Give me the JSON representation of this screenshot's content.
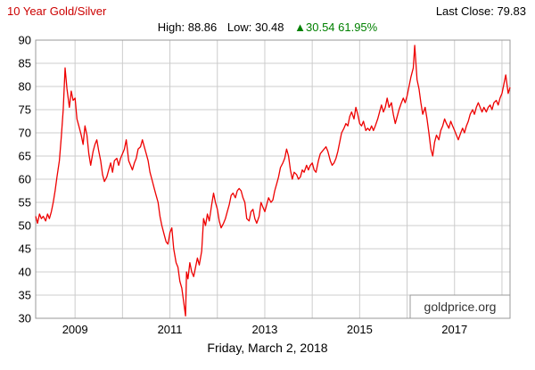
{
  "header": {
    "title": "10 Year Gold/Silver",
    "last_close": "Last Close: 79.83"
  },
  "stats": {
    "high": "High: 88.86",
    "low": "Low: 30.48",
    "change": "▲30.54 61.95%"
  },
  "footer": {
    "date": "Friday, March 2, 2018"
  },
  "watermark": "goldprice.org",
  "colors": {
    "title": "#cc0000",
    "line": "#ee0000",
    "change_positive": "#008000",
    "grid": "#cccccc",
    "border": "#999999"
  },
  "chart_data": {
    "type": "line",
    "title": "10 Year Gold/Silver",
    "last_close": 79.83,
    "high": 88.86,
    "low": 30.48,
    "change": 30.54,
    "change_pct": "61.95%",
    "xlim": [
      2008.17,
      2018.17
    ],
    "ylim": [
      30,
      90
    ],
    "ytick_step": 5,
    "xticks": [
      2009,
      2011,
      2013,
      2015,
      2017
    ],
    "x_gridlines": [
      2009,
      2010,
      2011,
      2012,
      2013,
      2014,
      2015,
      2016,
      2017,
      2018
    ],
    "grid": true,
    "legend": "none",
    "line_color": "#ee0000",
    "grid_color": "#cccccc",
    "border_color": "#999999",
    "points": [
      [
        2008.17,
        52.0
      ],
      [
        2008.21,
        50.5
      ],
      [
        2008.25,
        52.5
      ],
      [
        2008.29,
        51.5
      ],
      [
        2008.33,
        52.0
      ],
      [
        2008.38,
        51.0
      ],
      [
        2008.42,
        52.5
      ],
      [
        2008.46,
        51.5
      ],
      [
        2008.5,
        53.0
      ],
      [
        2008.54,
        55.0
      ],
      [
        2008.58,
        57.5
      ],
      [
        2008.62,
        60.5
      ],
      [
        2008.67,
        64.0
      ],
      [
        2008.71,
        69.0
      ],
      [
        2008.75,
        75.0
      ],
      [
        2008.79,
        84.0
      ],
      [
        2008.83,
        79.5
      ],
      [
        2008.88,
        75.5
      ],
      [
        2008.92,
        79.0
      ],
      [
        2008.96,
        77.0
      ],
      [
        2009.0,
        77.5
      ],
      [
        2009.04,
        73.0
      ],
      [
        2009.08,
        71.5
      ],
      [
        2009.13,
        69.5
      ],
      [
        2009.17,
        67.5
      ],
      [
        2009.21,
        71.5
      ],
      [
        2009.25,
        69.5
      ],
      [
        2009.29,
        65.5
      ],
      [
        2009.33,
        63.0
      ],
      [
        2009.38,
        66.0
      ],
      [
        2009.42,
        67.5
      ],
      [
        2009.46,
        68.5
      ],
      [
        2009.5,
        66.0
      ],
      [
        2009.54,
        64.0
      ],
      [
        2009.58,
        61.0
      ],
      [
        2009.62,
        59.5
      ],
      [
        2009.67,
        60.5
      ],
      [
        2009.71,
        62.0
      ],
      [
        2009.75,
        63.5
      ],
      [
        2009.79,
        61.5
      ],
      [
        2009.83,
        64.0
      ],
      [
        2009.88,
        64.5
      ],
      [
        2009.92,
        63.0
      ],
      [
        2009.96,
        64.5
      ],
      [
        2010.0,
        65.5
      ],
      [
        2010.04,
        66.5
      ],
      [
        2010.08,
        68.5
      ],
      [
        2010.13,
        64.0
      ],
      [
        2010.17,
        63.0
      ],
      [
        2010.21,
        62.0
      ],
      [
        2010.25,
        63.5
      ],
      [
        2010.29,
        64.5
      ],
      [
        2010.33,
        66.5
      ],
      [
        2010.38,
        67.0
      ],
      [
        2010.42,
        68.5
      ],
      [
        2010.46,
        67.0
      ],
      [
        2010.5,
        65.5
      ],
      [
        2010.54,
        64.0
      ],
      [
        2010.58,
        61.5
      ],
      [
        2010.62,
        60.0
      ],
      [
        2010.67,
        58.0
      ],
      [
        2010.71,
        56.5
      ],
      [
        2010.75,
        55.0
      ],
      [
        2010.79,
        52.0
      ],
      [
        2010.83,
        50.0
      ],
      [
        2010.88,
        48.0
      ],
      [
        2010.92,
        46.5
      ],
      [
        2010.96,
        46.0
      ],
      [
        2011.0,
        48.5
      ],
      [
        2011.04,
        49.5
      ],
      [
        2011.08,
        45.0
      ],
      [
        2011.13,
        42.0
      ],
      [
        2011.17,
        41.0
      ],
      [
        2011.21,
        38.0
      ],
      [
        2011.25,
        36.5
      ],
      [
        2011.29,
        33.5
      ],
      [
        2011.33,
        30.5
      ],
      [
        2011.35,
        40.0
      ],
      [
        2011.38,
        38.5
      ],
      [
        2011.42,
        42.0
      ],
      [
        2011.46,
        40.0
      ],
      [
        2011.5,
        39.0
      ],
      [
        2011.54,
        41.0
      ],
      [
        2011.58,
        43.0
      ],
      [
        2011.62,
        41.5
      ],
      [
        2011.67,
        44.5
      ],
      [
        2011.71,
        51.5
      ],
      [
        2011.75,
        50.0
      ],
      [
        2011.79,
        52.5
      ],
      [
        2011.83,
        51.0
      ],
      [
        2011.88,
        54.5
      ],
      [
        2011.92,
        57.0
      ],
      [
        2011.96,
        55.0
      ],
      [
        2012.0,
        53.5
      ],
      [
        2012.04,
        51.0
      ],
      [
        2012.08,
        49.5
      ],
      [
        2012.13,
        50.5
      ],
      [
        2012.17,
        51.5
      ],
      [
        2012.21,
        53.0
      ],
      [
        2012.25,
        54.5
      ],
      [
        2012.29,
        56.5
      ],
      [
        2012.33,
        57.0
      ],
      [
        2012.38,
        56.0
      ],
      [
        2012.42,
        57.5
      ],
      [
        2012.46,
        58.0
      ],
      [
        2012.5,
        57.5
      ],
      [
        2012.54,
        56.0
      ],
      [
        2012.58,
        55.0
      ],
      [
        2012.62,
        51.5
      ],
      [
        2012.67,
        51.0
      ],
      [
        2012.71,
        53.0
      ],
      [
        2012.75,
        53.5
      ],
      [
        2012.79,
        51.5
      ],
      [
        2012.83,
        50.5
      ],
      [
        2012.88,
        52.0
      ],
      [
        2012.92,
        55.0
      ],
      [
        2012.96,
        54.0
      ],
      [
        2013.0,
        53.0
      ],
      [
        2013.04,
        54.5
      ],
      [
        2013.08,
        56.0
      ],
      [
        2013.13,
        55.0
      ],
      [
        2013.17,
        55.5
      ],
      [
        2013.21,
        57.5
      ],
      [
        2013.25,
        59.0
      ],
      [
        2013.29,
        60.5
      ],
      [
        2013.33,
        62.5
      ],
      [
        2013.38,
        63.5
      ],
      [
        2013.42,
        64.5
      ],
      [
        2013.46,
        66.5
      ],
      [
        2013.5,
        65.0
      ],
      [
        2013.54,
        62.0
      ],
      [
        2013.58,
        60.0
      ],
      [
        2013.62,
        61.5
      ],
      [
        2013.67,
        61.0
      ],
      [
        2013.71,
        60.0
      ],
      [
        2013.75,
        60.5
      ],
      [
        2013.79,
        62.0
      ],
      [
        2013.83,
        61.5
      ],
      [
        2013.88,
        63.0
      ],
      [
        2013.92,
        62.0
      ],
      [
        2013.96,
        63.0
      ],
      [
        2014.0,
        63.5
      ],
      [
        2014.04,
        62.0
      ],
      [
        2014.08,
        61.5
      ],
      [
        2014.13,
        64.0
      ],
      [
        2014.17,
        65.5
      ],
      [
        2014.21,
        66.0
      ],
      [
        2014.25,
        66.5
      ],
      [
        2014.29,
        67.0
      ],
      [
        2014.33,
        66.0
      ],
      [
        2014.38,
        64.0
      ],
      [
        2014.42,
        63.0
      ],
      [
        2014.46,
        63.5
      ],
      [
        2014.5,
        64.5
      ],
      [
        2014.54,
        66.0
      ],
      [
        2014.58,
        68.0
      ],
      [
        2014.62,
        70.0
      ],
      [
        2014.67,
        71.0
      ],
      [
        2014.71,
        72.0
      ],
      [
        2014.75,
        71.5
      ],
      [
        2014.79,
        73.5
      ],
      [
        2014.83,
        74.5
      ],
      [
        2014.88,
        73.0
      ],
      [
        2014.92,
        75.5
      ],
      [
        2014.96,
        74.0
      ],
      [
        2015.0,
        72.0
      ],
      [
        2015.04,
        71.5
      ],
      [
        2015.08,
        72.5
      ],
      [
        2015.13,
        70.5
      ],
      [
        2015.17,
        71.0
      ],
      [
        2015.21,
        70.5
      ],
      [
        2015.25,
        71.5
      ],
      [
        2015.29,
        70.5
      ],
      [
        2015.33,
        71.5
      ],
      [
        2015.38,
        73.0
      ],
      [
        2015.42,
        74.5
      ],
      [
        2015.46,
        76.0
      ],
      [
        2015.5,
        74.5
      ],
      [
        2015.54,
        75.5
      ],
      [
        2015.58,
        77.5
      ],
      [
        2015.62,
        75.5
      ],
      [
        2015.67,
        76.5
      ],
      [
        2015.71,
        74.0
      ],
      [
        2015.75,
        72.0
      ],
      [
        2015.79,
        73.5
      ],
      [
        2015.83,
        75.0
      ],
      [
        2015.88,
        76.5
      ],
      [
        2015.92,
        77.5
      ],
      [
        2015.96,
        76.5
      ],
      [
        2016.0,
        78.0
      ],
      [
        2016.04,
        80.0
      ],
      [
        2016.08,
        82.0
      ],
      [
        2016.13,
        84.0
      ],
      [
        2016.16,
        88.86
      ],
      [
        2016.21,
        81.5
      ],
      [
        2016.25,
        79.5
      ],
      [
        2016.29,
        76.5
      ],
      [
        2016.33,
        74.0
      ],
      [
        2016.38,
        75.5
      ],
      [
        2016.42,
        73.0
      ],
      [
        2016.46,
        70.0
      ],
      [
        2016.5,
        66.5
      ],
      [
        2016.54,
        65.0
      ],
      [
        2016.58,
        68.0
      ],
      [
        2016.62,
        69.5
      ],
      [
        2016.67,
        68.5
      ],
      [
        2016.71,
        70.5
      ],
      [
        2016.75,
        71.5
      ],
      [
        2016.79,
        73.0
      ],
      [
        2016.83,
        72.0
      ],
      [
        2016.88,
        71.0
      ],
      [
        2016.92,
        72.5
      ],
      [
        2016.96,
        71.5
      ],
      [
        2017.0,
        70.5
      ],
      [
        2017.04,
        69.5
      ],
      [
        2017.08,
        68.5
      ],
      [
        2017.13,
        70.0
      ],
      [
        2017.17,
        71.0
      ],
      [
        2017.21,
        70.0
      ],
      [
        2017.25,
        71.5
      ],
      [
        2017.29,
        72.5
      ],
      [
        2017.33,
        74.0
      ],
      [
        2017.38,
        75.0
      ],
      [
        2017.42,
        74.0
      ],
      [
        2017.46,
        75.5
      ],
      [
        2017.5,
        76.5
      ],
      [
        2017.54,
        75.5
      ],
      [
        2017.58,
        74.5
      ],
      [
        2017.62,
        75.5
      ],
      [
        2017.67,
        74.5
      ],
      [
        2017.71,
        75.5
      ],
      [
        2017.75,
        76.0
      ],
      [
        2017.79,
        75.0
      ],
      [
        2017.83,
        76.5
      ],
      [
        2017.88,
        77.0
      ],
      [
        2017.92,
        76.0
      ],
      [
        2017.96,
        77.5
      ],
      [
        2018.0,
        78.5
      ],
      [
        2018.04,
        80.5
      ],
      [
        2018.08,
        82.5
      ],
      [
        2018.13,
        78.5
      ],
      [
        2018.17,
        79.83
      ]
    ]
  }
}
